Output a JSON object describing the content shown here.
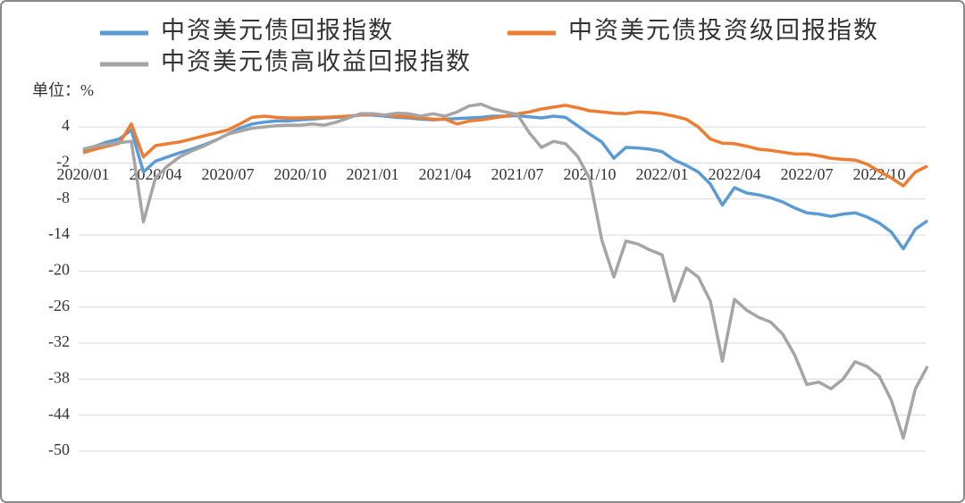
{
  "chart_data": {
    "type": "line",
    "y_label": "单位：%",
    "categories": [
      "2020/01",
      null,
      null,
      null,
      null,
      null,
      "2020/04",
      null,
      null,
      null,
      null,
      null,
      "2020/07",
      null,
      null,
      null,
      null,
      null,
      "2020/10",
      null,
      null,
      null,
      null,
      null,
      "2021/01",
      null,
      null,
      null,
      null,
      null,
      "2021/04",
      null,
      null,
      null,
      null,
      null,
      "2021/07",
      null,
      null,
      null,
      null,
      null,
      "2021/10",
      null,
      null,
      null,
      null,
      null,
      "2022/01",
      null,
      null,
      null,
      null,
      null,
      "2022/04",
      null,
      null,
      null,
      null,
      null,
      "2022/07",
      null,
      null,
      null,
      null,
      null,
      "2022/10",
      null,
      null,
      null,
      null
    ],
    "series": [
      {
        "name": "中资美元债回报指数",
        "color": "#5b9bd5",
        "values": [
          0,
          0.8,
          1.5,
          2,
          3.5,
          -3.5,
          -1.7,
          -1,
          -0.3,
          0.3,
          1,
          1.8,
          2.8,
          3.8,
          4.5,
          4.8,
          5,
          5,
          5.2,
          5.3,
          5.5,
          5.6,
          5.8,
          6,
          6,
          5.8,
          5.6,
          5.5,
          5.3,
          5.2,
          5.3,
          5.4,
          5.5,
          5.6,
          5.8,
          5.8,
          5.9,
          5.7,
          5.5,
          5.8,
          5.6,
          4.2,
          2.8,
          1.5,
          -1.2,
          0.6,
          0.5,
          0.3,
          -0.1,
          -1.5,
          -2.4,
          -3.5,
          -5.5,
          -9,
          -6.1,
          -7,
          -7.3,
          -7.8,
          -8.5,
          -9.5,
          -10.3,
          -10.5,
          -10.9,
          -10.5,
          -10.3,
          -11,
          -12,
          -13.5,
          -16.3,
          -13,
          -11.6
        ]
      },
      {
        "name": "中资美元债投资级回报指数",
        "color": "#ed7d31",
        "values": [
          -0.3,
          0.3,
          0.8,
          1.3,
          4.5,
          -1,
          0.9,
          1.2,
          1.5,
          2,
          2.5,
          3,
          3.5,
          4.5,
          5.6,
          5.8,
          5.6,
          5.5,
          5.5,
          5.6,
          5.6,
          5.7,
          5.8,
          6,
          6.1,
          6,
          5.8,
          5.7,
          5.5,
          5.3,
          5.3,
          4.5,
          5,
          5.2,
          5.5,
          5.8,
          6.2,
          6.5,
          7,
          7.3,
          7.6,
          7.2,
          6.7,
          6.5,
          6.3,
          6.2,
          6.5,
          6.4,
          6.2,
          5.8,
          5.3,
          4,
          2,
          1.3,
          1.2,
          0.8,
          0.3,
          0.1,
          -0.2,
          -0.5,
          -0.5,
          -0.8,
          -1.2,
          -1.4,
          -1.5,
          -2.2,
          -3.4,
          -4.5,
          -5.8,
          -3.5,
          -2.5
        ]
      },
      {
        "name": "中资美元债高收益回报指数",
        "color": "#a5a5a5",
        "values": [
          0.3,
          0.8,
          1.1,
          1.4,
          1.6,
          -11.8,
          -4.5,
          -2.5,
          -1,
          0,
          0.8,
          1.8,
          2.8,
          3.3,
          3.8,
          4,
          4.2,
          4.3,
          4.3,
          4.5,
          4.3,
          4.8,
          5.5,
          6.2,
          6.2,
          6,
          6.3,
          6.2,
          5.8,
          6.2,
          5.8,
          6.5,
          7.5,
          7.8,
          7,
          6.5,
          6.1,
          3,
          0.6,
          1.6,
          1.2,
          -0.9,
          -4.6,
          -14.8,
          -21,
          -15,
          -15.5,
          -16.5,
          -17.3,
          -25,
          -19.5,
          -21,
          -25,
          -35,
          -24.7,
          -26.5,
          -27.7,
          -28.5,
          -30.5,
          -34,
          -38.9,
          -38.5,
          -39.6,
          -38,
          -35.1,
          -35.9,
          -37.5,
          -41.5,
          -47.8,
          -39.6,
          -35.9
        ]
      }
    ],
    "ylim": [
      -50,
      10
    ],
    "yticks": [
      4,
      -2,
      -8,
      -14,
      -20,
      -26,
      -32,
      -38,
      -44,
      -50
    ],
    "grid": true
  }
}
